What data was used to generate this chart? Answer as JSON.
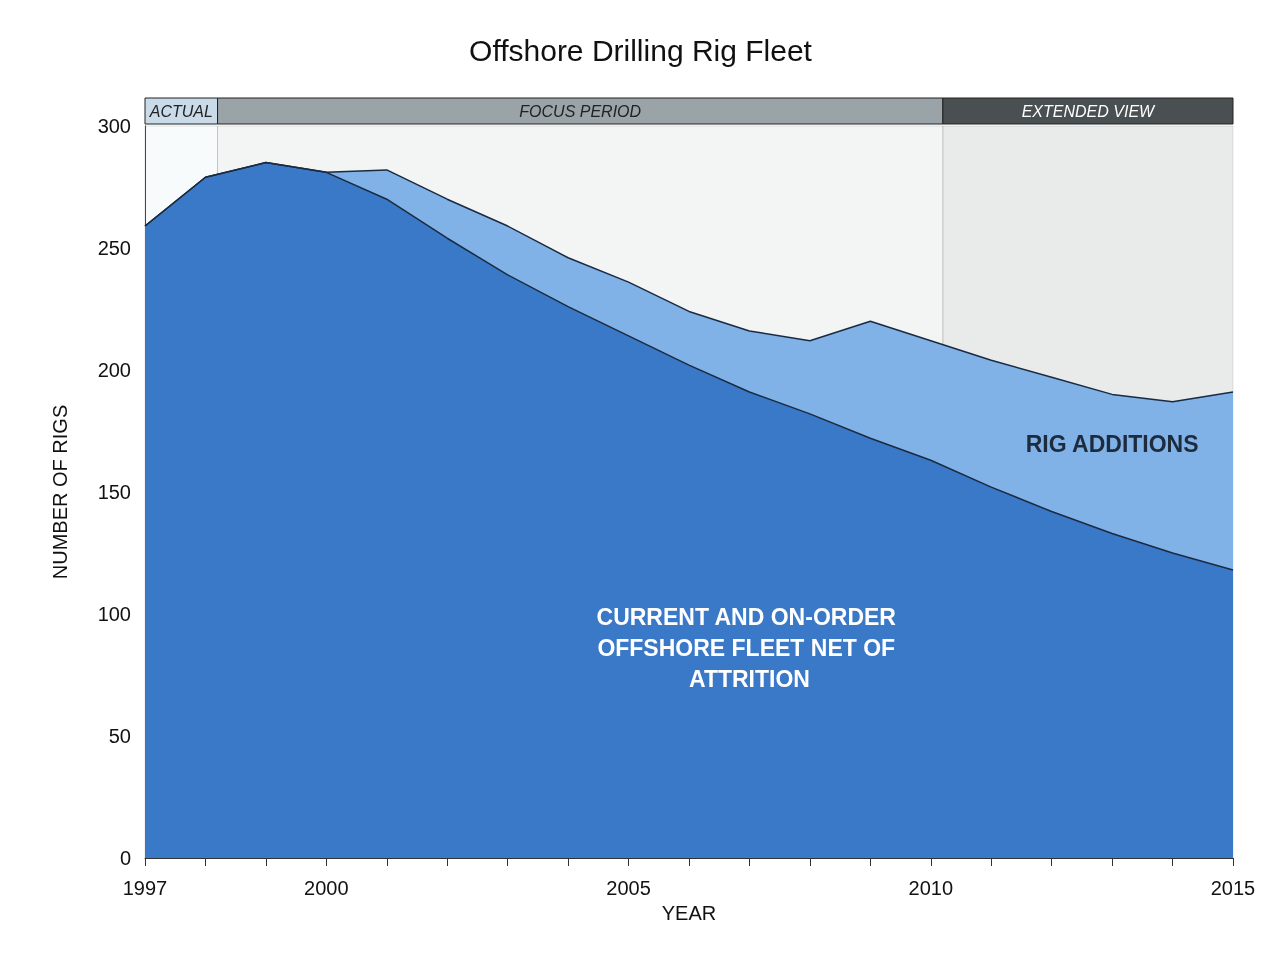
{
  "chart_data": {
    "type": "area",
    "title": "Offshore Drilling Rig Fleet",
    "xlabel": "YEAR",
    "ylabel": "NUMBER OF RIGS",
    "x": [
      1997,
      1998,
      1999,
      2000,
      2001,
      2002,
      2003,
      2004,
      2005,
      2006,
      2007,
      2008,
      2009,
      2010,
      2011,
      2012,
      2013,
      2014,
      2015
    ],
    "stacked": true,
    "series": [
      {
        "color": "#3a78c8",
        "values": [
          259,
          279,
          285,
          281,
          270,
          254,
          239,
          226,
          214,
          202,
          191,
          182,
          172,
          163,
          152,
          142,
          133,
          125,
          118
        ]
      },
      {
        "color": "#80b2e8",
        "values": [
          0,
          0,
          0,
          0,
          12,
          16,
          20,
          20,
          22,
          22,
          25,
          30,
          48,
          49,
          52,
          55,
          57,
          62,
          73
        ]
      }
    ],
    "xlim": [
      1997,
      2015
    ],
    "xticks": [
      1997,
      {
        "value": 1998,
        "label": null
      },
      {
        "value": 1999,
        "label": null
      },
      2000,
      {
        "value": 2001,
        "label": null
      },
      {
        "value": 2002,
        "label": null
      },
      {
        "value": 2003,
        "label": null
      },
      {
        "value": 2004,
        "label": null
      },
      2005,
      {
        "value": 2006,
        "label": null
      },
      {
        "value": 2007,
        "label": null
      },
      {
        "value": 2008,
        "label": null
      },
      {
        "value": 2009,
        "label": null
      },
      2010,
      {
        "value": 2011,
        "label": null
      },
      {
        "value": 2012,
        "label": null
      },
      {
        "value": 2013,
        "label": null
      },
      {
        "value": 2014,
        "label": null
      },
      2015
    ],
    "ylim": [
      0,
      300
    ],
    "yticks": [
      0,
      50,
      100,
      150,
      200,
      250,
      300
    ],
    "bands": [
      {
        "axis": "x",
        "from": 1997,
        "to": 1998.2,
        "label": "ACTUAL",
        "color": "#c9dbe8"
      },
      {
        "axis": "x",
        "from": 1998.2,
        "to": 2010.2,
        "label": "FOCUS PERIOD",
        "color": "#9aa3a8"
      },
      {
        "axis": "x",
        "from": 2010.2,
        "to": 2015,
        "label": "EXTENDED VIEW",
        "color": "#4a4f52"
      }
    ],
    "annotations": [
      "CURRENT AND ON-ORDER OFFSHORE FLEET NET OF ATTRITION",
      "RIG ADDITIONS"
    ],
    "grid": false,
    "marker": "none",
    "line_style": "solid"
  }
}
